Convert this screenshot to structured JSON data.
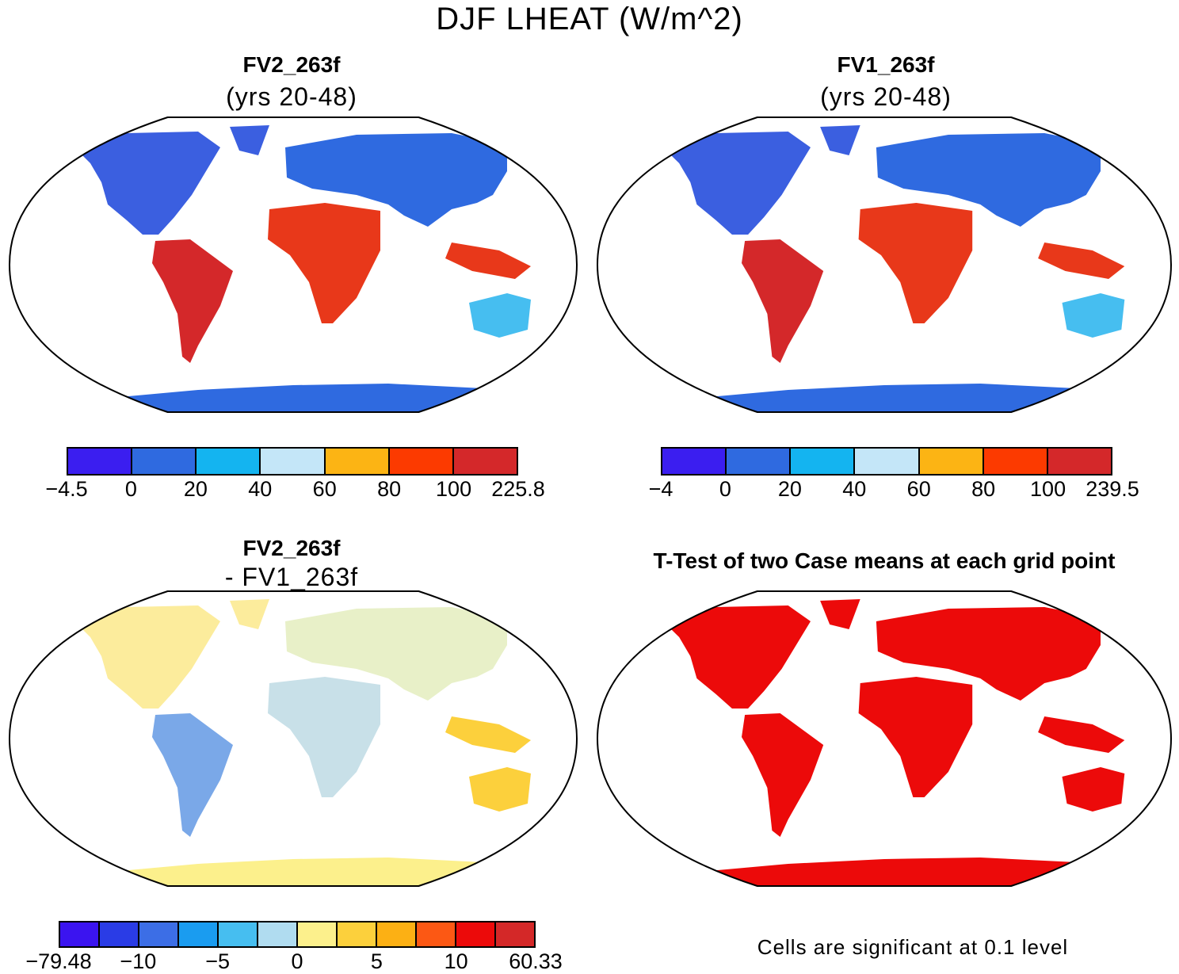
{
  "title": "DJF LHEAT (W/m^2)",
  "panels": [
    {
      "id": "p1",
      "title": "FV2_263f",
      "subtitle": "(yrs 20-48)",
      "colorbar": {
        "colors": [
          "#3b1ef0",
          "#2f6ae0",
          "#14b4f0",
          "#c4e6f8",
          "#fcb414",
          "#fc3a00",
          "#d4282a"
        ],
        "ticks": [
          "-4.5",
          "0",
          "20",
          "40",
          "60",
          "80",
          "100",
          "225.8"
        ]
      }
    },
    {
      "id": "p2",
      "title": "FV1_263f",
      "subtitle": "(yrs 20-48)",
      "colorbar": {
        "colors": [
          "#3b1ef0",
          "#2f6ae0",
          "#14b4f0",
          "#c4e6f8",
          "#fcb414",
          "#fc3a00",
          "#d4282a"
        ],
        "ticks": [
          "-4",
          "0",
          "20",
          "40",
          "60",
          "80",
          "100",
          "239.5"
        ]
      }
    },
    {
      "id": "p3",
      "title": "FV2_263f",
      "subtitle": "- FV1_263f",
      "colorbar": {
        "colors": [
          "#3b14f0",
          "#2a3ce6",
          "#3c6ee6",
          "#1a9cf0",
          "#46bef0",
          "#b0dcf0",
          "#fcf08c",
          "#fcd03c",
          "#fcb014",
          "#fc5814",
          "#ec0a0a",
          "#d42828"
        ],
        "ticks": [
          "-79.48",
          "-10",
          "-5",
          "0",
          "5",
          "10",
          "60.33"
        ]
      }
    },
    {
      "id": "p4",
      "title": "T-Test of two Case means at each grid point",
      "note": "Cells are significant at 0.1 level"
    }
  ]
}
